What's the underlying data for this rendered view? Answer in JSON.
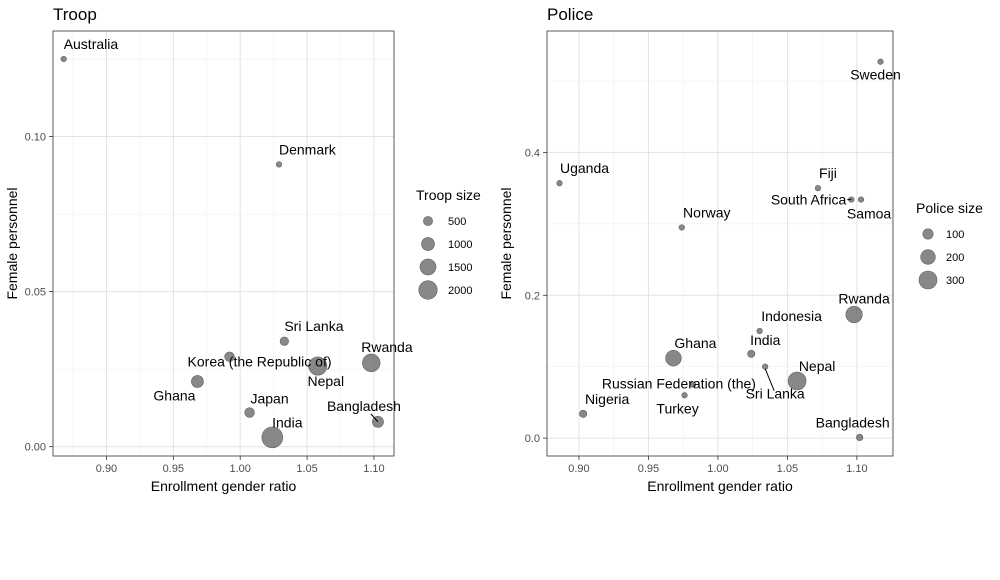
{
  "chart_data": [
    {
      "type": "scatter",
      "title": "Troop",
      "xlabel": "Enrollment gender ratio",
      "ylabel": "Female personnel",
      "xlim": [
        0.86,
        1.115
      ],
      "ylim": [
        -0.003,
        0.134
      ],
      "xticks": [
        0.9,
        0.95,
        1.0,
        1.05,
        1.1
      ],
      "xtick_labels": [
        "0.90",
        "0.95",
        "1.00",
        "1.05",
        "1.10"
      ],
      "yticks": [
        0.0,
        0.05,
        0.1
      ],
      "ytick_labels": [
        "0.00",
        "0.05",
        "0.10"
      ],
      "grid": true,
      "size_legend": {
        "title": "Troop size",
        "levels": [
          500,
          1000,
          1500,
          2000
        ],
        "labels": [
          "500",
          "1000",
          "1500",
          "2000"
        ]
      },
      "points": [
        {
          "label": "Australia",
          "x": 0.868,
          "y": 0.125,
          "size": 30
        },
        {
          "label": "Denmark",
          "x": 1.029,
          "y": 0.091,
          "size": 20
        },
        {
          "label": "Sri Lanka",
          "x": 1.033,
          "y": 0.034,
          "size": 350
        },
        {
          "label": "Korea (the Republic of)",
          "x": 0.992,
          "y": 0.029,
          "size": 450
        },
        {
          "label": "Nepal",
          "x": 1.058,
          "y": 0.026,
          "size": 1600
        },
        {
          "label": "Rwanda",
          "x": 1.098,
          "y": 0.027,
          "size": 1500
        },
        {
          "label": "Ghana",
          "x": 0.968,
          "y": 0.021,
          "size": 700
        },
        {
          "label": "Japan",
          "x": 1.007,
          "y": 0.011,
          "size": 450
        },
        {
          "label": "Bangladesh",
          "x": 1.103,
          "y": 0.008,
          "size": 600
        },
        {
          "label": "India",
          "x": 1.024,
          "y": 0.003,
          "size": 2100
        }
      ]
    },
    {
      "type": "scatter",
      "title": "Police",
      "xlabel": "Enrollment gender ratio",
      "ylabel": "Female personnel",
      "xlim": [
        0.877,
        1.126
      ],
      "ylim": [
        -0.025,
        0.57
      ],
      "xticks": [
        0.9,
        0.95,
        1.0,
        1.05,
        1.1
      ],
      "xtick_labels": [
        "0.90",
        "0.95",
        "1.00",
        "1.05",
        "1.10"
      ],
      "yticks": [
        0.0,
        0.2,
        0.4
      ],
      "ytick_labels": [
        "0.0",
        "0.2",
        "0.4"
      ],
      "grid": true,
      "size_legend": {
        "title": "Police size",
        "levels": [
          100,
          200,
          300
        ],
        "labels": [
          "100",
          "200",
          "300"
        ]
      },
      "points": [
        {
          "label": "Sweden",
          "x": 1.117,
          "y": 0.527,
          "size": 15
        },
        {
          "label": "Uganda",
          "x": 0.886,
          "y": 0.357,
          "size": 25
        },
        {
          "label": "Fiji",
          "x": 1.072,
          "y": 0.35,
          "size": 25
        },
        {
          "label": "South Africa",
          "x": 1.096,
          "y": 0.334,
          "size": 25
        },
        {
          "label": "Samoa",
          "x": 1.103,
          "y": 0.334,
          "size": 10
        },
        {
          "label": "Norway",
          "x": 0.974,
          "y": 0.295,
          "size": 20
        },
        {
          "label": "Rwanda",
          "x": 1.098,
          "y": 0.173,
          "size": 250
        },
        {
          "label": "Indonesia",
          "x": 1.03,
          "y": 0.15,
          "size": 25
        },
        {
          "label": "Ghana",
          "x": 0.968,
          "y": 0.112,
          "size": 230
        },
        {
          "label": "India",
          "x": 1.024,
          "y": 0.118,
          "size": 50
        },
        {
          "label": "Sri Lanka",
          "x": 1.034,
          "y": 0.1,
          "size": 25
        },
        {
          "label": "Nepal",
          "x": 1.057,
          "y": 0.08,
          "size": 300
        },
        {
          "label": "Russian Federation (the)",
          "x": 0.982,
          "y": 0.075,
          "size": 25
        },
        {
          "label": "Turkey",
          "x": 0.976,
          "y": 0.06,
          "size": 20
        },
        {
          "label": "Nigeria",
          "x": 0.903,
          "y": 0.034,
          "size": 50
        },
        {
          "label": "Bangladesh",
          "x": 1.102,
          "y": 0.001,
          "size": 40
        }
      ]
    }
  ]
}
